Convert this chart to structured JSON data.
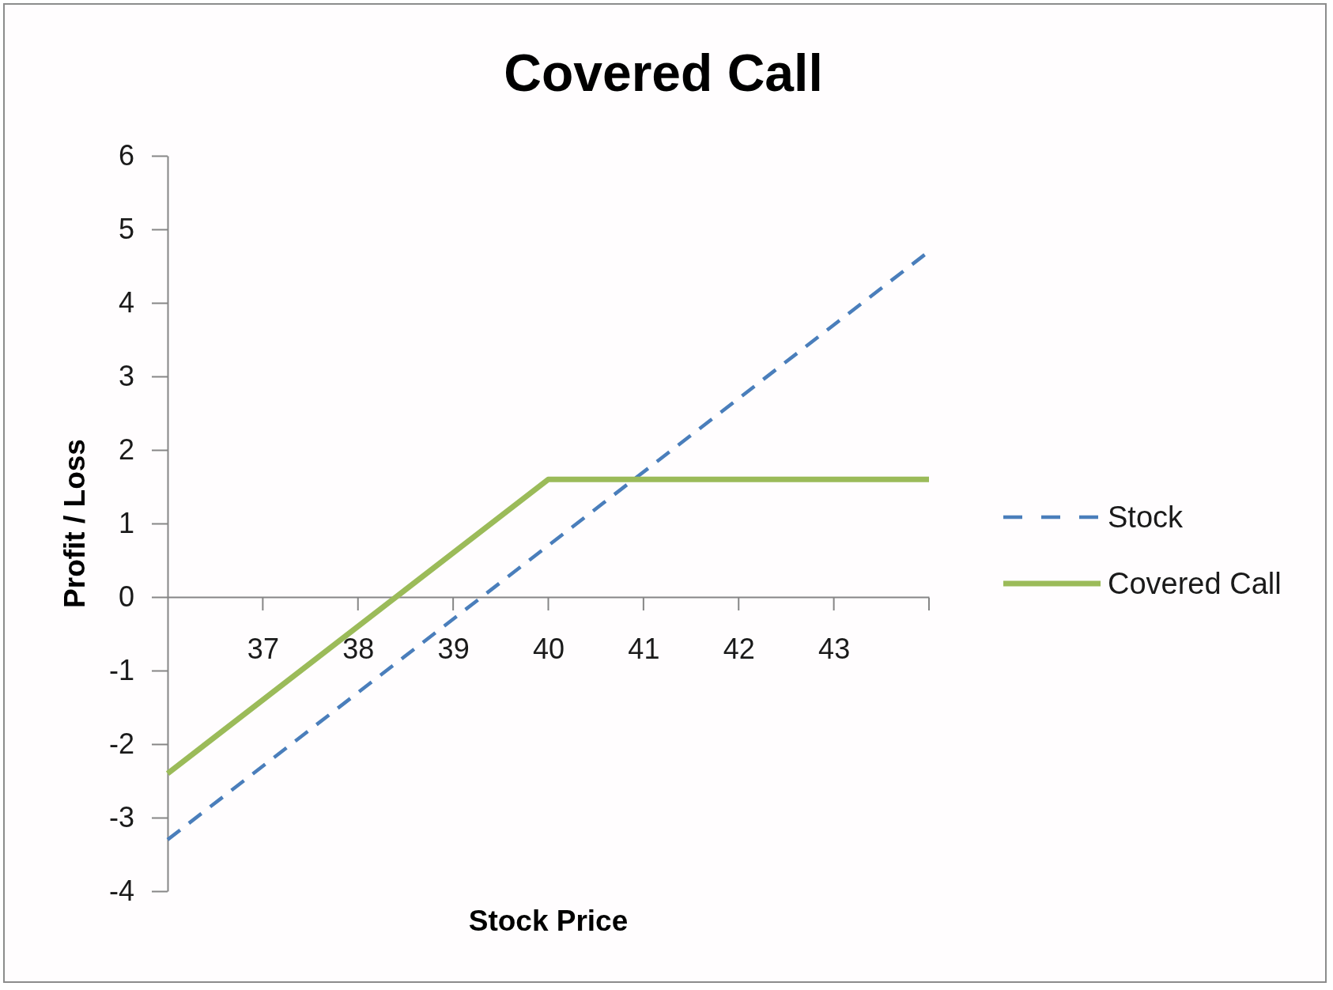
{
  "chart_data": {
    "type": "line",
    "title": "Covered Call",
    "xlabel": "Stock Price",
    "ylabel": "Profit / Loss",
    "series": [
      {
        "name": "Stock",
        "color": "#4a7ebb",
        "line_style": "dashed",
        "x": [
          36,
          44
        ],
        "values": [
          -3.3,
          4.7
        ]
      },
      {
        "name": "Covered Call",
        "color": "#9bbb59",
        "line_style": "solid",
        "x": [
          36,
          40,
          44
        ],
        "values": [
          -2.4,
          1.6,
          1.6
        ]
      }
    ],
    "xlim": [
      36,
      44
    ],
    "ylim": [
      -4,
      6
    ],
    "xticks": [
      37,
      38,
      39,
      40,
      41,
      42,
      43,
      {
        "value": 44,
        "label": null
      }
    ],
    "yticks": [
      -4,
      -3,
      -2,
      -1,
      0,
      1,
      2,
      3,
      4,
      5,
      6
    ],
    "grid": false,
    "legend": "right"
  }
}
